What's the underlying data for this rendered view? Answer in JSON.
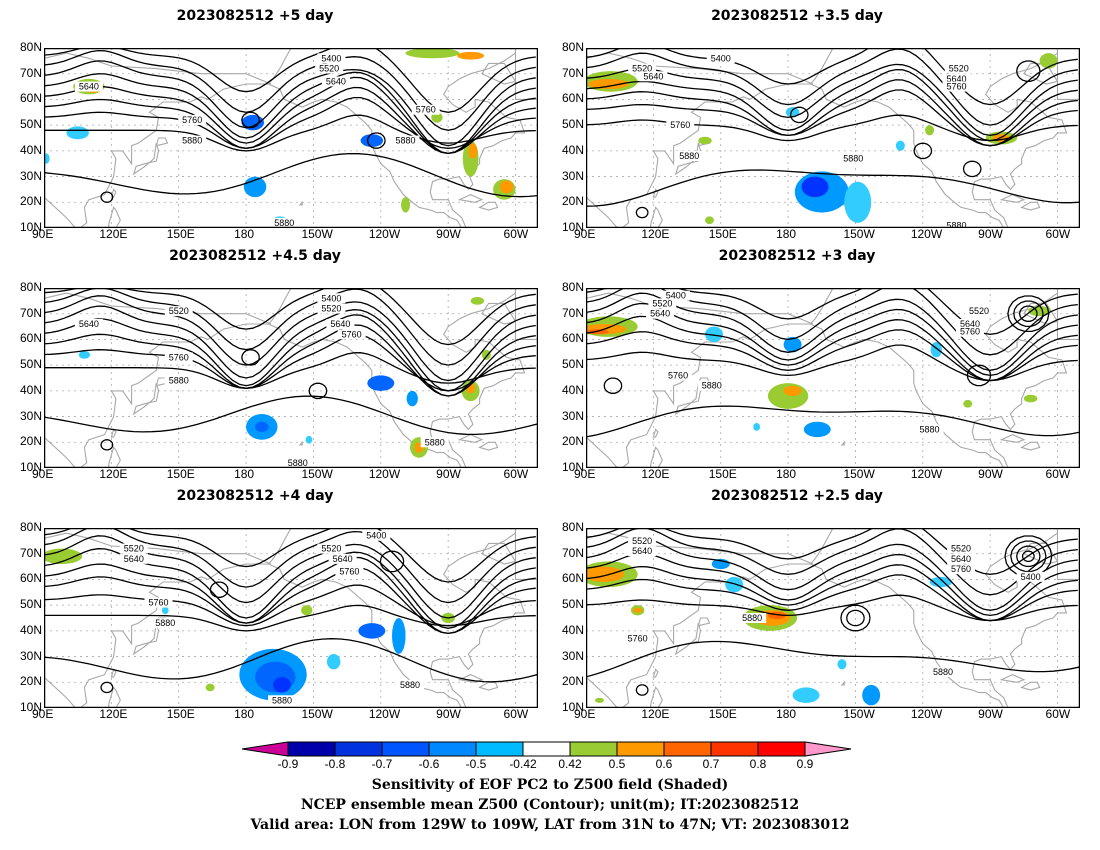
{
  "panels": [
    {
      "title": "2023082512  +5 day",
      "labels": [
        {
          "t": "5400",
          "lon": 218,
          "lat": 76
        },
        {
          "t": "5520",
          "lon": 217,
          "lat": 72
        },
        {
          "t": "5640",
          "lon": 220,
          "lat": 67
        },
        {
          "t": "5640",
          "lon": 110,
          "lat": 65
        },
        {
          "t": "5760",
          "lon": 156,
          "lat": 52
        },
        {
          "t": "5880",
          "lon": 156,
          "lat": 44
        },
        {
          "t": "5760",
          "lon": 260,
          "lat": 56
        },
        {
          "t": "5880",
          "lon": 251,
          "lat": 44
        },
        {
          "t": "5880",
          "lon": 197,
          "lat": 12
        }
      ],
      "blobs": [
        {
          "lon": 110,
          "lat": 65,
          "rx": 7,
          "ry": 3,
          "c": "#99cc33"
        },
        {
          "lon": 112,
          "lat": 64,
          "rx": 3,
          "ry": 1.5,
          "c": "#ff9900"
        },
        {
          "lon": 105,
          "lat": 47,
          "rx": 5,
          "ry": 2.5,
          "c": "#33ccff"
        },
        {
          "lon": 183,
          "lat": 51,
          "rx": 5,
          "ry": 3,
          "c": "#0066ff"
        },
        {
          "lon": 236,
          "lat": 44,
          "rx": 5,
          "ry": 2.5,
          "c": "#0066ff"
        },
        {
          "lon": 184,
          "lat": 26,
          "rx": 5,
          "ry": 4,
          "c": "#0099ff"
        },
        {
          "lon": 195,
          "lat": 12,
          "rx": 4,
          "ry": 2.5,
          "c": "#33ccff"
        },
        {
          "lon": 265,
          "lat": 53,
          "rx": 2.5,
          "ry": 2,
          "c": "#99cc33"
        },
        {
          "lon": 280,
          "lat": 37,
          "rx": 3.5,
          "ry": 7,
          "c": "#99cc33"
        },
        {
          "lon": 281,
          "lat": 40,
          "rx": 2,
          "ry": 3,
          "c": "#ff9900"
        },
        {
          "lon": 263,
          "lat": 78,
          "rx": 12,
          "ry": 2,
          "c": "#99cc33"
        },
        {
          "lon": 280,
          "lat": 77,
          "rx": 6,
          "ry": 1.5,
          "c": "#ff9900"
        },
        {
          "lon": 295,
          "lat": 25,
          "rx": 5,
          "ry": 4,
          "c": "#99cc33"
        },
        {
          "lon": 296,
          "lat": 26,
          "rx": 3,
          "ry": 2.5,
          "c": "#ff9900"
        },
        {
          "lon": 251,
          "lat": 19,
          "rx": 2,
          "ry": 3,
          "c": "#99cc33"
        },
        {
          "lon": 91,
          "lat": 37,
          "rx": 1.5,
          "ry": 2,
          "c": "#33ccff"
        }
      ]
    },
    {
      "title": "2023082512  +3.5 day",
      "labels": [
        {
          "t": "5400",
          "lon": 150,
          "lat": 76
        },
        {
          "t": "5520",
          "lon": 115,
          "lat": 72
        },
        {
          "t": "5640",
          "lon": 120,
          "lat": 69
        },
        {
          "t": "5520",
          "lon": 256,
          "lat": 72
        },
        {
          "t": "5640",
          "lon": 255,
          "lat": 68
        },
        {
          "t": "5760",
          "lon": 255,
          "lat": 65
        },
        {
          "t": "5760",
          "lon": 132,
          "lat": 50
        },
        {
          "t": "5880",
          "lon": 136,
          "lat": 38
        },
        {
          "t": "5880",
          "lon": 209,
          "lat": 37
        },
        {
          "t": "5880",
          "lon": 255,
          "lat": 11
        }
      ],
      "blobs": [
        {
          "lon": 101,
          "lat": 67,
          "rx": 12,
          "ry": 4,
          "c": "#99cc33"
        },
        {
          "lon": 100,
          "lat": 66,
          "rx": 9,
          "ry": 2,
          "c": "#ff9900"
        },
        {
          "lon": 195,
          "lat": 24,
          "rx": 12,
          "ry": 8,
          "c": "#0099ff"
        },
        {
          "lon": 192,
          "lat": 26,
          "rx": 6,
          "ry": 4,
          "c": "#0033ff"
        },
        {
          "lon": 211,
          "lat": 20,
          "rx": 6,
          "ry": 8,
          "c": "#33ccff"
        },
        {
          "lon": 275,
          "lat": 45,
          "rx": 7,
          "ry": 2.5,
          "c": "#99cc33"
        },
        {
          "lon": 275,
          "lat": 45,
          "rx": 4,
          "ry": 1.5,
          "c": "#ff9900"
        },
        {
          "lon": 296,
          "lat": 75,
          "rx": 4,
          "ry": 3,
          "c": "#99cc33"
        },
        {
          "lon": 230,
          "lat": 42,
          "rx": 2,
          "ry": 2,
          "c": "#33ccff"
        },
        {
          "lon": 182,
          "lat": 55,
          "rx": 3,
          "ry": 2,
          "c": "#33ccff"
        },
        {
          "lon": 143,
          "lat": 44,
          "rx": 3,
          "ry": 1.5,
          "c": "#99cc33"
        },
        {
          "lon": 243,
          "lat": 48,
          "rx": 2,
          "ry": 2,
          "c": "#99cc33"
        },
        {
          "lon": 145,
          "lat": 13,
          "rx": 2,
          "ry": 1.5,
          "c": "#99cc33"
        }
      ]
    },
    {
      "title": "2023082512  +4.5 day",
      "labels": [
        {
          "t": "5400",
          "lon": 218,
          "lat": 76
        },
        {
          "t": "5520",
          "lon": 150,
          "lat": 71
        },
        {
          "t": "5520",
          "lon": 218,
          "lat": 72
        },
        {
          "t": "5640",
          "lon": 110,
          "lat": 66
        },
        {
          "t": "5640",
          "lon": 222,
          "lat": 66
        },
        {
          "t": "5760",
          "lon": 227,
          "lat": 62
        },
        {
          "t": "5760",
          "lon": 150,
          "lat": 53
        },
        {
          "t": "5880",
          "lon": 150,
          "lat": 44
        },
        {
          "t": "5880",
          "lon": 264,
          "lat": 20
        },
        {
          "t": "5880",
          "lon": 203,
          "lat": 12
        }
      ],
      "blobs": [
        {
          "lon": 110,
          "lat": 66,
          "rx": 4,
          "ry": 2,
          "c": "#99cc33"
        },
        {
          "lon": 108,
          "lat": 54,
          "rx": 2.5,
          "ry": 1.5,
          "c": "#33ccff"
        },
        {
          "lon": 187,
          "lat": 26,
          "rx": 7,
          "ry": 5,
          "c": "#0099ff"
        },
        {
          "lon": 187,
          "lat": 26,
          "rx": 3,
          "ry": 2,
          "c": "#0066ff"
        },
        {
          "lon": 240,
          "lat": 43,
          "rx": 6,
          "ry": 3,
          "c": "#0066ff"
        },
        {
          "lon": 254,
          "lat": 37,
          "rx": 2.5,
          "ry": 3,
          "c": "#0099ff"
        },
        {
          "lon": 257,
          "lat": 18,
          "rx": 4,
          "ry": 4,
          "c": "#99cc33"
        },
        {
          "lon": 257,
          "lat": 18,
          "rx": 2,
          "ry": 2,
          "c": "#ff9900"
        },
        {
          "lon": 280,
          "lat": 40,
          "rx": 4,
          "ry": 4,
          "c": "#99cc33"
        },
        {
          "lon": 280,
          "lat": 41,
          "rx": 2,
          "ry": 2,
          "c": "#ff9900"
        },
        {
          "lon": 283,
          "lat": 75,
          "rx": 3,
          "ry": 1.5,
          "c": "#99cc33"
        },
        {
          "lon": 287,
          "lat": 54,
          "rx": 2,
          "ry": 2,
          "c": "#99cc33"
        },
        {
          "lon": 208,
          "lat": 21,
          "rx": 1.5,
          "ry": 1.5,
          "c": "#33ccff"
        }
      ]
    },
    {
      "title": "2023082512  +3 day",
      "labels": [
        {
          "t": "5400",
          "lon": 130,
          "lat": 77
        },
        {
          "t": "5520",
          "lon": 124,
          "lat": 74
        },
        {
          "t": "5640",
          "lon": 123,
          "lat": 70
        },
        {
          "t": "5520",
          "lon": 265,
          "lat": 71
        },
        {
          "t": "5640",
          "lon": 261,
          "lat": 66
        },
        {
          "t": "5760",
          "lon": 261,
          "lat": 63
        },
        {
          "t": "5760",
          "lon": 131,
          "lat": 46
        },
        {
          "t": "5880",
          "lon": 146,
          "lat": 42
        },
        {
          "t": "5880",
          "lon": 243,
          "lat": 25
        }
      ],
      "blobs": [
        {
          "lon": 100,
          "lat": 65,
          "rx": 13,
          "ry": 4,
          "c": "#99cc33"
        },
        {
          "lon": 98,
          "lat": 64,
          "rx": 10,
          "ry": 2,
          "c": "#ff9900"
        },
        {
          "lon": 95,
          "lat": 63,
          "rx": 5,
          "ry": 1,
          "c": "#ff6600"
        },
        {
          "lon": 180,
          "lat": 38,
          "rx": 9,
          "ry": 5,
          "c": "#99cc33"
        },
        {
          "lon": 182,
          "lat": 40,
          "rx": 4,
          "ry": 2,
          "c": "#ff9900"
        },
        {
          "lon": 193,
          "lat": 25,
          "rx": 6,
          "ry": 3,
          "c": "#0099ff"
        },
        {
          "lon": 182,
          "lat": 58,
          "rx": 4,
          "ry": 3,
          "c": "#0099ff"
        },
        {
          "lon": 147,
          "lat": 62,
          "rx": 4,
          "ry": 3,
          "c": "#33ccff"
        },
        {
          "lon": 246,
          "lat": 56,
          "rx": 2.5,
          "ry": 3,
          "c": "#33ccff"
        },
        {
          "lon": 292,
          "lat": 71,
          "rx": 5,
          "ry": 2,
          "c": "#99cc33"
        },
        {
          "lon": 260,
          "lat": 35,
          "rx": 2,
          "ry": 1.5,
          "c": "#99cc33"
        },
        {
          "lon": 166,
          "lat": 26,
          "rx": 1.5,
          "ry": 1.5,
          "c": "#33ccff"
        },
        {
          "lon": 288,
          "lat": 37,
          "rx": 3,
          "ry": 1.5,
          "c": "#99cc33"
        }
      ]
    },
    {
      "title": "2023082512  +4 day",
      "labels": [
        {
          "t": "5400",
          "lon": 238,
          "lat": 77
        },
        {
          "t": "5520",
          "lon": 130,
          "lat": 72
        },
        {
          "t": "5640",
          "lon": 130,
          "lat": 68
        },
        {
          "t": "5520",
          "lon": 218,
          "lat": 72
        },
        {
          "t": "5640",
          "lon": 223,
          "lat": 68
        },
        {
          "t": "5760",
          "lon": 226,
          "lat": 63
        },
        {
          "t": "5760",
          "lon": 141,
          "lat": 51
        },
        {
          "t": "5880",
          "lon": 144,
          "lat": 43
        },
        {
          "t": "5880",
          "lon": 253,
          "lat": 19
        },
        {
          "t": "5880",
          "lon": 196,
          "lat": 13
        }
      ],
      "blobs": [
        {
          "lon": 98,
          "lat": 69,
          "rx": 9,
          "ry": 3,
          "c": "#99cc33"
        },
        {
          "lon": 192,
          "lat": 23,
          "rx": 15,
          "ry": 10,
          "c": "#0099ff"
        },
        {
          "lon": 193,
          "lat": 22,
          "rx": 9,
          "ry": 6,
          "c": "#0066ff"
        },
        {
          "lon": 196,
          "lat": 19,
          "rx": 4,
          "ry": 3,
          "c": "#0033ff"
        },
        {
          "lon": 236,
          "lat": 40,
          "rx": 6,
          "ry": 3,
          "c": "#0066ff"
        },
        {
          "lon": 248,
          "lat": 38,
          "rx": 3,
          "ry": 7,
          "c": "#0099ff"
        },
        {
          "lon": 219,
          "lat": 28,
          "rx": 3,
          "ry": 3,
          "c": "#33ccff"
        },
        {
          "lon": 207,
          "lat": 48,
          "rx": 2.5,
          "ry": 2,
          "c": "#99cc33"
        },
        {
          "lon": 270,
          "lat": 45,
          "rx": 3,
          "ry": 2,
          "c": "#99cc33"
        },
        {
          "lon": 164,
          "lat": 18,
          "rx": 2,
          "ry": 1.5,
          "c": "#99cc33"
        },
        {
          "lon": 144,
          "lat": 48,
          "rx": 1.5,
          "ry": 1.5,
          "c": "#33ccff"
        }
      ]
    },
    {
      "title": "2023082512  +2.5 day",
      "labels": [
        {
          "t": "5520",
          "lon": 115,
          "lat": 75
        },
        {
          "t": "5640",
          "lon": 115,
          "lat": 71
        },
        {
          "t": "5520",
          "lon": 257,
          "lat": 72
        },
        {
          "t": "5640",
          "lon": 257,
          "lat": 68
        },
        {
          "t": "5760",
          "lon": 257,
          "lat": 64
        },
        {
          "t": "5400",
          "lon": 288,
          "lat": 61
        },
        {
          "t": "5880",
          "lon": 164,
          "lat": 45
        },
        {
          "t": "5760",
          "lon": 113,
          "lat": 37
        },
        {
          "t": "5880",
          "lon": 249,
          "lat": 24
        }
      ],
      "blobs": [
        {
          "lon": 100,
          "lat": 62,
          "rx": 13,
          "ry": 5,
          "c": "#99cc33"
        },
        {
          "lon": 98,
          "lat": 62,
          "rx": 9,
          "ry": 3,
          "c": "#ff9900"
        },
        {
          "lon": 113,
          "lat": 48,
          "rx": 3,
          "ry": 2,
          "c": "#99cc33"
        },
        {
          "lon": 113,
          "lat": 48,
          "rx": 2,
          "ry": 1,
          "c": "#ff9900"
        },
        {
          "lon": 172,
          "lat": 45,
          "rx": 12,
          "ry": 5,
          "c": "#99cc33"
        },
        {
          "lon": 173,
          "lat": 45,
          "rx": 8,
          "ry": 3,
          "c": "#ff9900"
        },
        {
          "lon": 175,
          "lat": 46,
          "rx": 4,
          "ry": 1.5,
          "c": "#ff6600"
        },
        {
          "lon": 150,
          "lat": 66,
          "rx": 4,
          "ry": 2,
          "c": "#0099ff"
        },
        {
          "lon": 156,
          "lat": 58,
          "rx": 4,
          "ry": 3,
          "c": "#33ccff"
        },
        {
          "lon": 217,
          "lat": 15,
          "rx": 4,
          "ry": 4,
          "c": "#0099ff"
        },
        {
          "lon": 188,
          "lat": 15,
          "rx": 6,
          "ry": 3,
          "c": "#33ccff"
        },
        {
          "lon": 248,
          "lat": 59,
          "rx": 5,
          "ry": 2,
          "c": "#33ccff"
        },
        {
          "lon": 204,
          "lat": 27,
          "rx": 2,
          "ry": 2,
          "c": "#33ccff"
        },
        {
          "lon": 96,
          "lat": 13,
          "rx": 2,
          "ry": 1,
          "c": "#99cc33"
        }
      ]
    }
  ],
  "axes": {
    "lat_ticks": [
      "10N",
      "20N",
      "30N",
      "40N",
      "50N",
      "60N",
      "70N",
      "80N"
    ],
    "lon_ticks": [
      "90E",
      "120E",
      "150E",
      "180",
      "150W",
      "120W",
      "90W",
      "60W"
    ]
  },
  "colorbar": {
    "ticks": [
      "-0.9",
      "-0.8",
      "-0.7",
      "-0.6",
      "-0.5",
      "-0.42",
      "0.42",
      "0.5",
      "0.6",
      "0.7",
      "0.8",
      "0.9"
    ],
    "colors": [
      "#0000aa",
      "#0033dd",
      "#0055ff",
      "#0088ff",
      "#00bbff",
      "#ffffff",
      "#99cc33",
      "#ff9900",
      "#ff6600",
      "#ff3300",
      "#ff0000"
    ],
    "left_cap_color": "#cc0099",
    "right_cap_color": "#ff99cc"
  },
  "captions": [
    "Sensitivity of EOF PC2 to Z500 field (Shaded)",
    "NCEP ensemble mean Z500 (Contour); unit(m); IT:2023082512",
    "Valid area: LON from 129W to 109W, LAT from 31N to 47N; VT: 2023083012"
  ]
}
